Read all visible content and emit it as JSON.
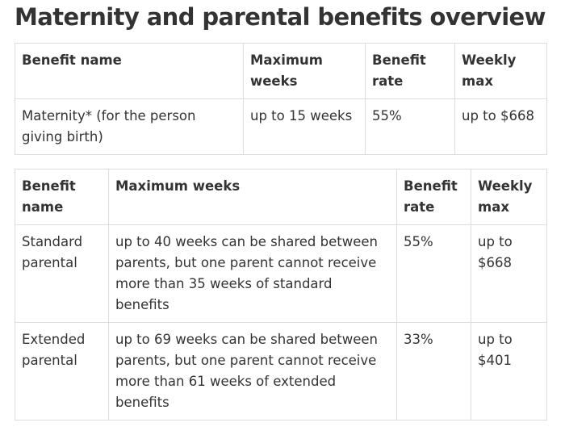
{
  "page": {
    "title": "Maternity and parental benefits overview"
  },
  "maternity_table": {
    "headers": [
      "Benefit name",
      "Maximum weeks",
      "Benefit rate",
      "Weekly max"
    ],
    "rows": [
      [
        "Maternity* (for the person giving birth)",
        "up to 15 weeks",
        "55%",
        "up to $668"
      ]
    ]
  },
  "parental_table": {
    "headers": [
      "Benefit name",
      "Maximum weeks",
      "Benefit rate",
      "Weekly max"
    ],
    "rows": [
      [
        "Standard parental",
        "up to 40 weeks can be shared between parents, but one parent cannot receive more than 35 weeks of standard benefits",
        "55%",
        "up to $668"
      ],
      [
        "Extended parental",
        "up to 69 weeks can be shared between parents, but one parent cannot receive more than 61 weeks of extended benefits",
        "33%",
        "up to $401"
      ]
    ]
  }
}
